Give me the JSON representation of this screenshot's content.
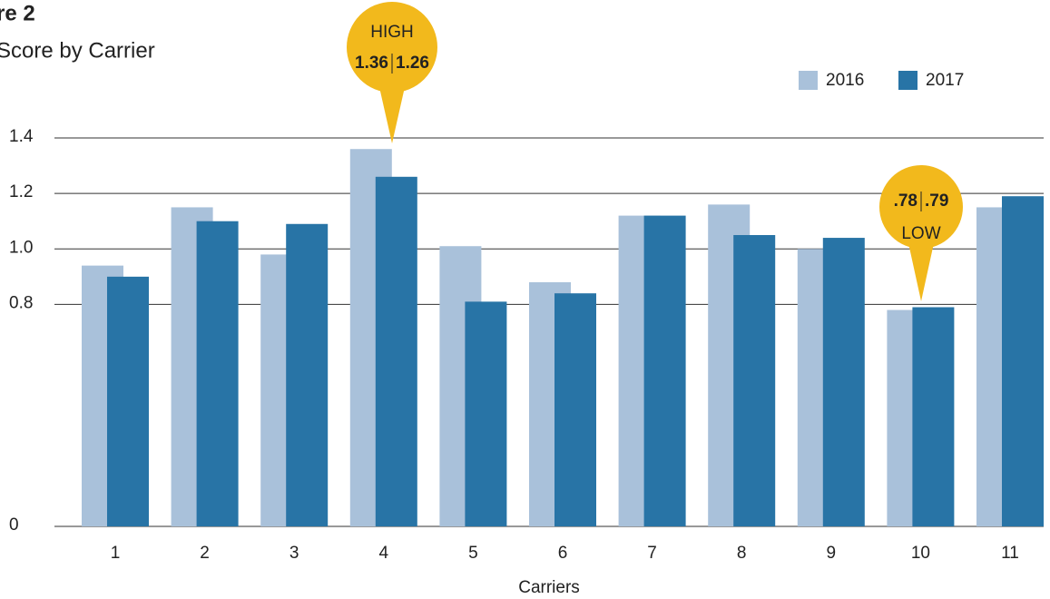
{
  "chart_data": {
    "type": "bar",
    "title": "re 2",
    "subtitle": "Score by Carrier",
    "x_label": "Carriers",
    "categories": [
      "1",
      "2",
      "3",
      "4",
      "5",
      "6",
      "7",
      "8",
      "9",
      "10",
      "11"
    ],
    "series": [
      {
        "name": "2016",
        "color": "#a9c1da",
        "values": [
          0.94,
          1.15,
          0.98,
          1.36,
          1.01,
          0.88,
          1.12,
          1.16,
          1.0,
          0.78,
          1.15
        ]
      },
      {
        "name": "2017",
        "color": "#2874a6",
        "values": [
          0.9,
          1.1,
          1.09,
          1.26,
          0.81,
          0.84,
          1.12,
          1.05,
          1.04,
          0.79,
          1.19
        ]
      }
    ],
    "ylim": [
      0,
      1.4
    ],
    "yticks": [
      0,
      0.8,
      {
        "value": 1,
        "label": "1.0"
      },
      1.2,
      1.4
    ],
    "grid": true,
    "legend": "top-right",
    "annotations": [
      {
        "text": "HIGH",
        "labels": [
          "1.36",
          "1.26"
        ],
        "color": "#f2b91c"
      },
      {
        "text": "LOW",
        "labels": [
          ".78",
          ".79"
        ],
        "color": "#f2b91c"
      }
    ]
  }
}
